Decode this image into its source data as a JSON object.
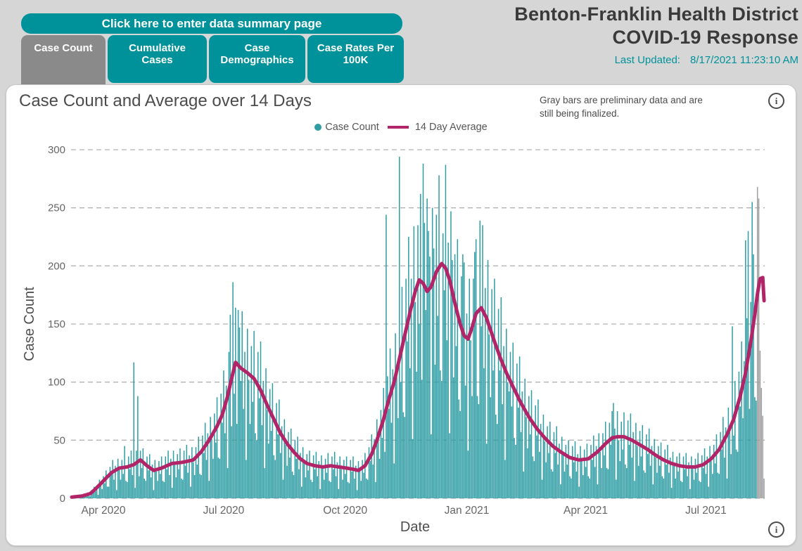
{
  "header": {
    "summary_button": "Click here to enter data summary page",
    "tabs": [
      {
        "label": "Case Count",
        "active": true
      },
      {
        "label": "Cumulative Cases",
        "active": false
      },
      {
        "label": "Case Demographics",
        "active": false
      },
      {
        "label": "Case Rates Per 100K",
        "active": false
      }
    ],
    "title_line1": "Benton-Franklin Health District",
    "title_line2": "COVID-19 Response",
    "last_updated_label": "Last Updated:",
    "last_updated_value": "8/17/2021 11:23:10 AM"
  },
  "chart": {
    "title": "Case Count and Average over 14 Days",
    "note_line1": "Gray bars are preliminary data and are",
    "note_line2": "still being finalized.",
    "ylabel": "Case Count",
    "xlabel": "Date",
    "legend": {
      "case_count": "Case Count",
      "average": "14 Day Average"
    }
  },
  "icons": {
    "info_glyph": "i"
  },
  "colors": {
    "teal": "#00929B",
    "bar": "#2E9DA4",
    "bar_preliminary": "#9E9E9E",
    "line": "#B12568",
    "grid": "#b3b3b3",
    "tick_text": "#666666"
  },
  "chart_data": {
    "type": "bar+line",
    "title": "Case Count and Average over 14 Days",
    "xlabel": "Date",
    "ylabel": "Case Count",
    "ylim": [
      0,
      300
    ],
    "yticks": [
      0,
      50,
      100,
      150,
      200,
      250,
      300
    ],
    "grid": "dashed horizontal",
    "legend_position": "top center",
    "days_total": 525,
    "start_date": "2020-03-08",
    "end_date": "2021-08-14",
    "x_ticks": [
      {
        "label": "Apr 2020",
        "day": 24
      },
      {
        "label": "Jul 2020",
        "day": 115
      },
      {
        "label": "Oct 2020",
        "day": 207
      },
      {
        "label": "Jan 2021",
        "day": 299
      },
      {
        "label": "Apr 2021",
        "day": 389
      },
      {
        "label": "Jul 2021",
        "day": 480
      }
    ],
    "series": [
      {
        "name": "Case Count",
        "type": "bar",
        "color": "#2E9DA4",
        "preliminary_color": "#9E9E9E"
      },
      {
        "name": "14 Day Average",
        "type": "line",
        "color": "#B12568",
        "width": 5
      }
    ],
    "preliminary_start_day": 519,
    "avg_anchors": [
      [
        0,
        1
      ],
      [
        8,
        2
      ],
      [
        14,
        4
      ],
      [
        18,
        8
      ],
      [
        24,
        15
      ],
      [
        30,
        22
      ],
      [
        36,
        26
      ],
      [
        42,
        27
      ],
      [
        47,
        29
      ],
      [
        52,
        33
      ],
      [
        57,
        28
      ],
      [
        62,
        24
      ],
      [
        68,
        26
      ],
      [
        76,
        30
      ],
      [
        84,
        31
      ],
      [
        92,
        33
      ],
      [
        98,
        40
      ],
      [
        104,
        50
      ],
      [
        110,
        62
      ],
      [
        114,
        72
      ],
      [
        118,
        88
      ],
      [
        121,
        103
      ],
      [
        124,
        117
      ],
      [
        128,
        112
      ],
      [
        133,
        108
      ],
      [
        138,
        103
      ],
      [
        143,
        93
      ],
      [
        148,
        80
      ],
      [
        153,
        68
      ],
      [
        158,
        56
      ],
      [
        163,
        47
      ],
      [
        168,
        40
      ],
      [
        173,
        34
      ],
      [
        178,
        30
      ],
      [
        184,
        28
      ],
      [
        190,
        27
      ],
      [
        196,
        28
      ],
      [
        202,
        27
      ],
      [
        208,
        26
      ],
      [
        213,
        25
      ],
      [
        217,
        24
      ],
      [
        222,
        28
      ],
      [
        227,
        38
      ],
      [
        231,
        50
      ],
      [
        236,
        68
      ],
      [
        240,
        85
      ],
      [
        244,
        100
      ],
      [
        248,
        120
      ],
      [
        252,
        140
      ],
      [
        256,
        160
      ],
      [
        260,
        178
      ],
      [
        263,
        188
      ],
      [
        266,
        185
      ],
      [
        269,
        178
      ],
      [
        272,
        182
      ],
      [
        276,
        195
      ],
      [
        280,
        202
      ],
      [
        283,
        198
      ],
      [
        286,
        188
      ],
      [
        290,
        168
      ],
      [
        294,
        150
      ],
      [
        297,
        140
      ],
      [
        300,
        137
      ],
      [
        303,
        147
      ],
      [
        306,
        159
      ],
      [
        310,
        164
      ],
      [
        314,
        155
      ],
      [
        319,
        138
      ],
      [
        324,
        122
      ],
      [
        329,
        108
      ],
      [
        334,
        96
      ],
      [
        340,
        82
      ],
      [
        346,
        70
      ],
      [
        352,
        60
      ],
      [
        358,
        52
      ],
      [
        364,
        45
      ],
      [
        370,
        40
      ],
      [
        377,
        35
      ],
      [
        384,
        33
      ],
      [
        391,
        34
      ],
      [
        398,
        40
      ],
      [
        404,
        47
      ],
      [
        409,
        52
      ],
      [
        413,
        53
      ],
      [
        418,
        53
      ],
      [
        424,
        50
      ],
      [
        430,
        46
      ],
      [
        436,
        42
      ],
      [
        442,
        37
      ],
      [
        448,
        33
      ],
      [
        454,
        30
      ],
      [
        460,
        28
      ],
      [
        466,
        27
      ],
      [
        472,
        27
      ],
      [
        478,
        29
      ],
      [
        484,
        34
      ],
      [
        490,
        42
      ],
      [
        496,
        55
      ],
      [
        501,
        68
      ],
      [
        506,
        88
      ],
      [
        510,
        108
      ],
      [
        514,
        135
      ],
      [
        517,
        158
      ],
      [
        519,
        176
      ],
      [
        521,
        189
      ],
      [
        523,
        190
      ],
      [
        524,
        170
      ]
    ],
    "bar_noise_cycle": [
      0.5,
      1.3,
      0.9,
      1.45,
      0.7,
      1.15,
      0.3,
      1.35,
      0.95,
      0.6,
      1.25,
      0.8,
      1.4,
      0.55
    ],
    "bar_overrides": {
      "40": 45,
      "47": 117,
      "50": 88,
      "120": 158,
      "122": 186,
      "126": 162,
      "238": 244,
      "248": 294,
      "255": 225,
      "262": 235,
      "266": 288,
      "270": 230,
      "274": 215,
      "281": 228,
      "288": 205,
      "296": 210,
      "305": 212,
      "309": 239,
      "318": 180,
      "331": 92,
      "410": 82,
      "413": 75,
      "500": 148,
      "510": 222,
      "512": 230,
      "515": 255,
      "519": 268,
      "520": 258,
      "521": 127,
      "522": 95,
      "523": 71,
      "524": 17
    }
  }
}
